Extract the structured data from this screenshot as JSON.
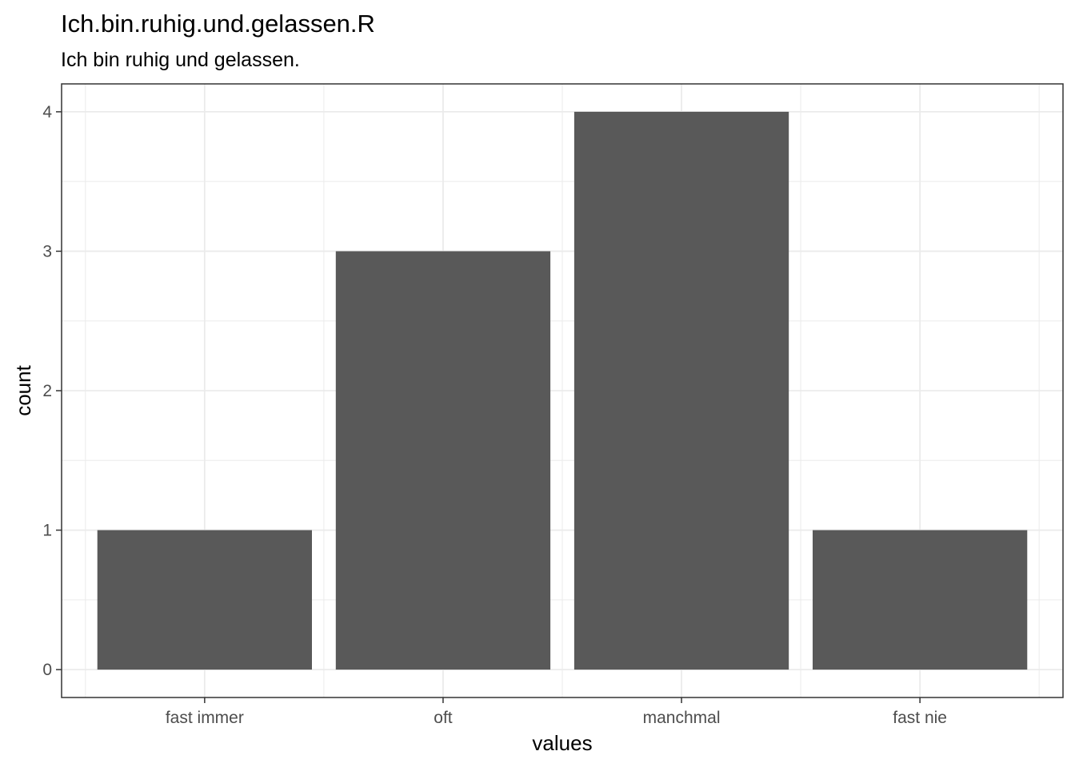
{
  "chart_data": {
    "type": "bar",
    "title": "Ich.bin.ruhig.und.gelassen.R",
    "subtitle": "Ich bin ruhig und gelassen.",
    "xlabel": "values",
    "ylabel": "count",
    "categories": [
      "fast immer",
      "oft",
      "manchmal",
      "fast nie"
    ],
    "values": [
      1,
      3,
      4,
      1
    ],
    "ylim": [
      0,
      4
    ],
    "yticks": [
      "0",
      "1",
      "2",
      "3",
      "4"
    ],
    "grid": true,
    "bar_color": "#595959",
    "grid_color": "#ebebeb",
    "panel_border_color": "#333333"
  }
}
